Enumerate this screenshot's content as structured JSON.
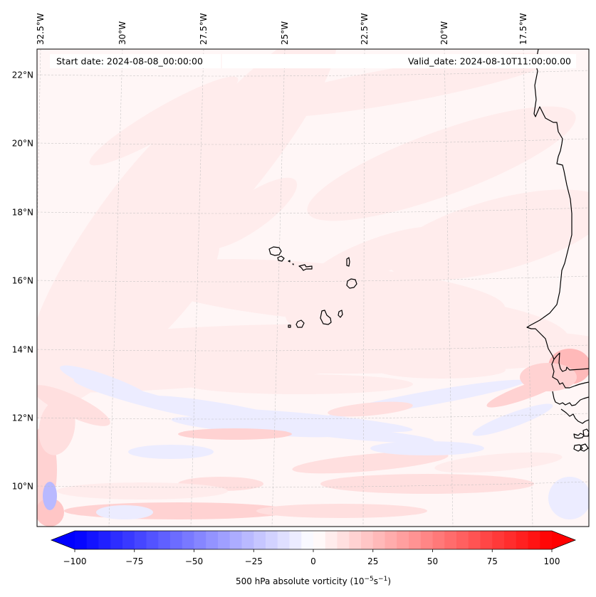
{
  "chart_data": {
    "type": "heatmap",
    "title": "",
    "field": "500 hPa absolute vorticity",
    "map": {
      "projection": "conic-like (curved graticule)",
      "lon_range": [
        -33,
        -16
      ],
      "lat_range": [
        8.8,
        22.8
      ],
      "lon_ticks": [
        {
          "value": -32.5,
          "label": "32.5°W"
        },
        {
          "value": -30.0,
          "label": "30°W"
        },
        {
          "value": -27.5,
          "label": "27.5°W"
        },
        {
          "value": -25.0,
          "label": "25°W"
        },
        {
          "value": -22.5,
          "label": "22.5°W"
        },
        {
          "value": -20.0,
          "label": "20°W"
        },
        {
          "value": -17.5,
          "label": "17.5°W"
        }
      ],
      "lat_ticks": [
        {
          "value": 22,
          "label": "22°N"
        },
        {
          "value": 20,
          "label": "20°N"
        },
        {
          "value": 18,
          "label": "18°N"
        },
        {
          "value": 16,
          "label": "16°N"
        },
        {
          "value": 14,
          "label": "14°N"
        },
        {
          "value": 12,
          "label": "12°N"
        },
        {
          "value": 10,
          "label": "10°N"
        }
      ],
      "gridlines": true,
      "features": [
        "Cape Verde islands",
        "West African coastline (Mauritania, Senegal, Gambia, Guinea-Bissau)"
      ]
    },
    "annotations": {
      "start_date": "Start date: 2024-08-08_00:00:00",
      "valid_date": "Valid_date: 2024-08-10T11:00:00.00"
    },
    "colorbar": {
      "label_prefix": "500 hPa absolute vorticity (10",
      "label_exp1": "−5",
      "label_mid": "s",
      "label_exp2": "−1",
      "label_suffix": ")",
      "min": -100,
      "max": 100,
      "step": 5,
      "extend": "both",
      "colormap": "bwr",
      "ticks": [
        {
          "value": -100,
          "label": "−100"
        },
        {
          "value": -75,
          "label": "−75"
        },
        {
          "value": -50,
          "label": "−50"
        },
        {
          "value": -25,
          "label": "−25"
        },
        {
          "value": 0,
          "label": "0"
        },
        {
          "value": 25,
          "label": "25"
        },
        {
          "value": 50,
          "label": "50"
        },
        {
          "value": 75,
          "label": "75"
        },
        {
          "value": 100,
          "label": "100"
        }
      ],
      "low_color": "#0000ff",
      "mid_color": "#ffffff",
      "high_color": "#ff0000"
    },
    "field_features": [
      {
        "desc": "weak positive background",
        "value_range": [
          0,
          10
        ]
      },
      {
        "desc": "positive band arcing from SW to N",
        "value_range": [
          5,
          15
        ]
      },
      {
        "desc": "negative streaks near 12-13°N",
        "value_range": [
          -15,
          -5
        ]
      },
      {
        "desc": "positive streaks near 9-12°N",
        "value_range": [
          10,
          25
        ]
      },
      {
        "desc": "strong negative spot at west edge ~9.8°N",
        "value_range": [
          -35,
          -20
        ]
      },
      {
        "desc": "positive maximum over Senegal coast ~13°N",
        "value_range": [
          20,
          35
        ]
      }
    ]
  }
}
